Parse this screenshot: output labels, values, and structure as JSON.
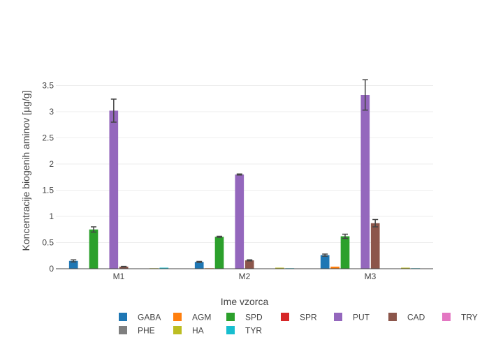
{
  "chart_data": {
    "type": "bar",
    "title": "",
    "xlabel": "Ime vzorca",
    "ylabel": "Koncentracije biogenih aminov [µg/g]",
    "categories": [
      "M1",
      "M2",
      "M3"
    ],
    "ylim": [
      0,
      3.8
    ],
    "yticks": [
      0,
      0.5,
      1,
      1.5,
      2,
      2.5,
      3,
      3.5
    ],
    "ytick_labels": [
      "0",
      "0.5",
      "1",
      "1.5",
      "2",
      "2.5",
      "3",
      "3.5"
    ],
    "grid": true,
    "legend_position": "bottom",
    "series": [
      {
        "name": "GABA",
        "color": "#1f77b4",
        "values": [
          0.15,
          0.13,
          0.26
        ],
        "errors": [
          0.02,
          0.01,
          0.02
        ]
      },
      {
        "name": "AGM",
        "color": "#ff7f0e",
        "values": [
          0.005,
          0.01,
          0.04
        ],
        "errors": [
          0,
          0,
          0
        ]
      },
      {
        "name": "SPD",
        "color": "#2ca02c",
        "values": [
          0.75,
          0.61,
          0.62
        ],
        "errors": [
          0.05,
          0.01,
          0.04
        ]
      },
      {
        "name": "SPR",
        "color": "#d62728",
        "values": [
          0.0,
          0.0,
          0.0
        ],
        "errors": [
          0,
          0,
          0
        ]
      },
      {
        "name": "PUT",
        "color": "#9467bd",
        "values": [
          3.02,
          1.8,
          3.32
        ],
        "errors": [
          0.22,
          0.01,
          0.29
        ]
      },
      {
        "name": "CAD",
        "color": "#8c564b",
        "values": [
          0.04,
          0.16,
          0.87
        ],
        "errors": [
          0.005,
          0.01,
          0.07
        ]
      },
      {
        "name": "TRY",
        "color": "#e377c2",
        "values": [
          0.005,
          0.005,
          0.005
        ],
        "errors": [
          0,
          0,
          0
        ]
      },
      {
        "name": "PHE",
        "color": "#7f7f7f",
        "values": [
          0.005,
          0.005,
          0.005
        ],
        "errors": [
          0,
          0,
          0
        ]
      },
      {
        "name": "HA",
        "color": "#bcbd22",
        "values": [
          0.01,
          0.02,
          0.02
        ],
        "errors": [
          0,
          0,
          0
        ]
      },
      {
        "name": "TYR",
        "color": "#17becf",
        "values": [
          0.02,
          0.01,
          0.01
        ],
        "errors": [
          0,
          0,
          0
        ]
      }
    ]
  }
}
